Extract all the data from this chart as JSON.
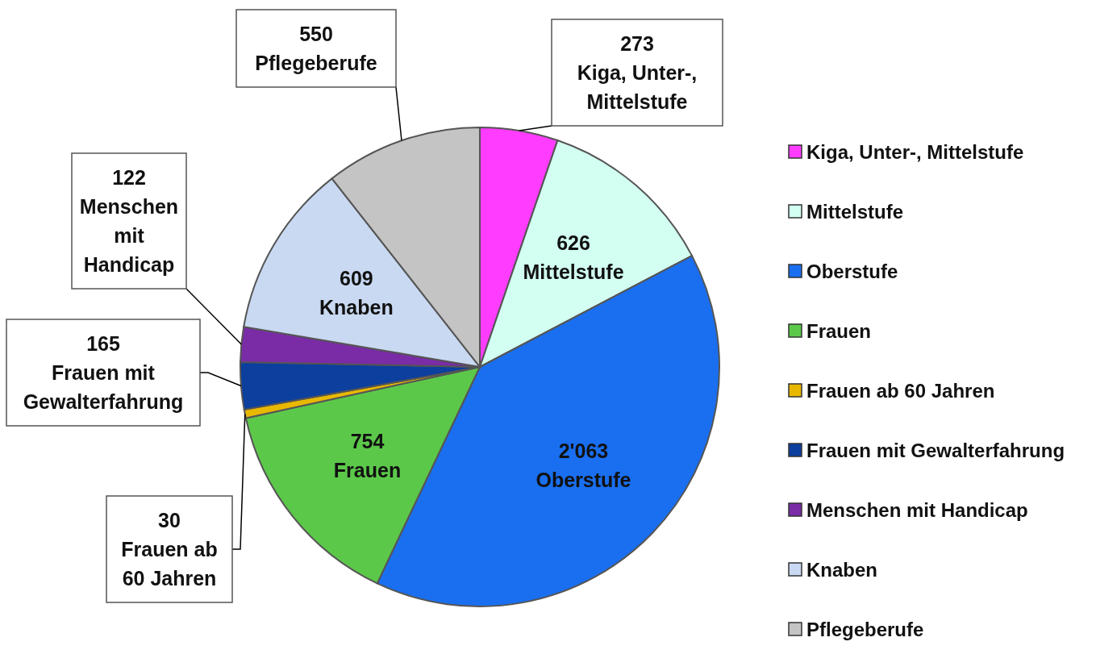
{
  "chart_data": {
    "type": "pie",
    "categories": [
      "Kiga, Unter-, Mittelstufe",
      "Mittelstufe",
      "Oberstufe",
      "Frauen",
      "Frauen ab 60 Jahren",
      "Frauen mit Gewalterfahrung",
      "Menschen mit Handicap",
      "Knaben",
      "Pflegeberufe"
    ],
    "values": [
      273,
      626,
      2063,
      754,
      30,
      165,
      122,
      609,
      550
    ],
    "colors": [
      "#ff3cff",
      "#d2fff2",
      "#1a6ff0",
      "#5cc84a",
      "#e8b800",
      "#0c3f9e",
      "#7a2ca6",
      "#c9d9f2",
      "#c4c4c4"
    ],
    "value_labels": [
      "273",
      "626",
      "2'063",
      "754",
      "30",
      "165",
      "122",
      "609",
      "550"
    ],
    "legend": "right"
  }
}
